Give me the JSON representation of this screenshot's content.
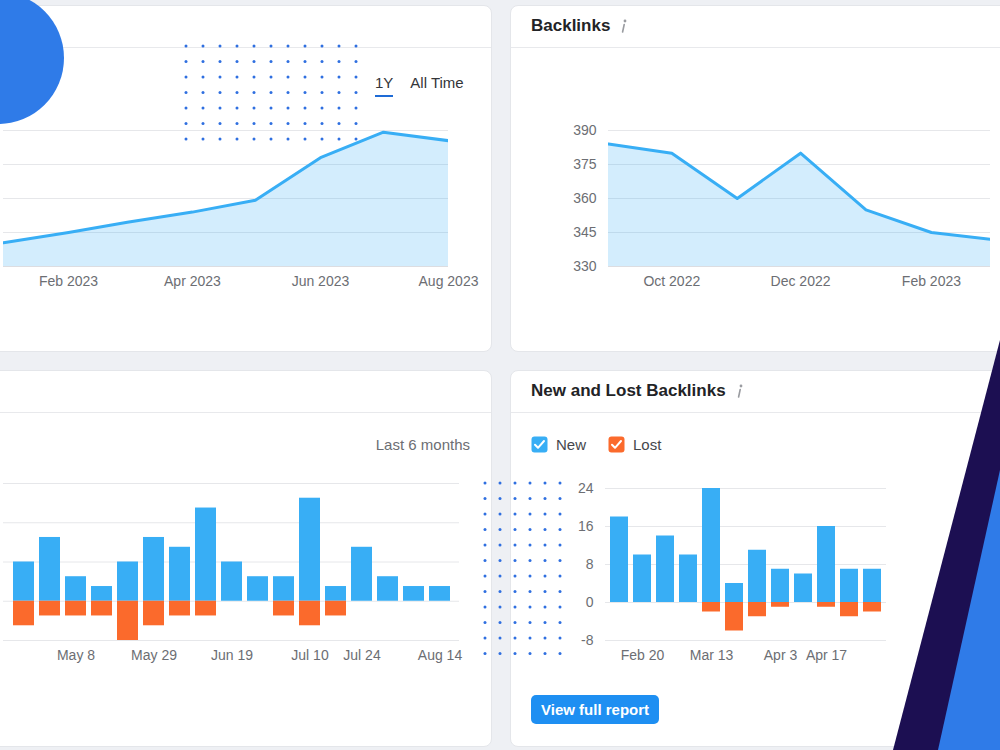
{
  "chart_data": [
    {
      "type": "area",
      "x": [
        "2023-01",
        "2023-02",
        "2023-03",
        "2023-04",
        "2023-05",
        "2023-06",
        "2023-07",
        "2023-08"
      ],
      "values": [
        0.7,
        1.0,
        1.3,
        1.6,
        1.95,
        3.2,
        3.95,
        3.7
      ],
      "color": "#38aef5",
      "xlim": [
        "2023-01",
        "2023-08"
      ],
      "xticks": [
        {
          "value": "2023-02",
          "label": "Feb 2023"
        },
        {
          "value": "2023-04",
          "label": "Apr 2023"
        },
        {
          "value": "2023-06",
          "label": "Jun 2023"
        },
        {
          "value": "2023-08",
          "label": "Aug 2023"
        }
      ],
      "ylim": [
        0,
        4
      ],
      "yticks": [
        0,
        1,
        2,
        3,
        4
      ],
      "grid": true,
      "tick_labels": "x",
      "annotations": [
        "1Y",
        "All Time"
      ]
    },
    {
      "type": "area",
      "title": "Backlinks",
      "x": [
        "2022-09",
        "2022-10",
        "2022-11",
        "2022-12",
        "2023-01",
        "2023-02",
        "2023-03"
      ],
      "values": [
        384,
        380,
        360,
        380,
        355,
        345,
        342
      ],
      "color": "#38aef5",
      "xlim": [
        "2022-09",
        "2023-03"
      ],
      "xticks": [
        {
          "value": "2022-10",
          "label": "Oct 2022"
        },
        {
          "value": "2022-12",
          "label": "Dec 2022"
        },
        {
          "value": "2023-02",
          "label": "Feb 2023"
        }
      ],
      "ylim": [
        330,
        390
      ],
      "yticks": [
        330,
        345,
        360,
        375,
        390
      ],
      "grid": true
    },
    {
      "type": "bar",
      "subtitle": "Last 6 months",
      "categories": [
        null,
        null,
        "May 8",
        null,
        null,
        "May 29",
        null,
        null,
        "Jun 19",
        null,
        null,
        "Jul 10",
        null,
        "Jul 24",
        null,
        null,
        "Aug 14"
      ],
      "series": [
        {
          "color": "#38aef5",
          "values": [
            8,
            13,
            5,
            3,
            8,
            13,
            11,
            19,
            8,
            5,
            5,
            21,
            3,
            11,
            5,
            3,
            3
          ]
        },
        {
          "color": "#fb6a2c",
          "values": [
            -5,
            -3,
            -3,
            -3,
            -8,
            -5,
            -3,
            -3,
            0,
            0,
            -3,
            -5,
            -3,
            0,
            0,
            0,
            0
          ]
        }
      ],
      "stacked": true,
      "ylim": [
        -8,
        24
      ],
      "yticks": [
        -8,
        0,
        8,
        16,
        24
      ],
      "grid": true,
      "tick_labels": "x"
    },
    {
      "type": "bar",
      "title": "New and Lost Backlinks",
      "categories": [
        null,
        "Feb 20",
        null,
        null,
        "Mar 13",
        null,
        null,
        "Apr 3",
        null,
        "Apr 17",
        null,
        null
      ],
      "series": [
        {
          "name": "New",
          "color": "#38aef5",
          "values": [
            18,
            10,
            14,
            10,
            24,
            4,
            11,
            7,
            6,
            16,
            7,
            7
          ]
        },
        {
          "name": "Lost",
          "color": "#fb6a2c",
          "values": [
            0,
            0,
            0,
            0,
            -2,
            -6,
            -3,
            -1,
            0,
            -1,
            -3,
            -2
          ]
        }
      ],
      "stacked": true,
      "ylim": [
        -8,
        24
      ],
      "yticks": [
        -8,
        0,
        8,
        16,
        24
      ],
      "grid": true,
      "legend": "top-left",
      "annotations": [
        "View full report"
      ]
    }
  ]
}
